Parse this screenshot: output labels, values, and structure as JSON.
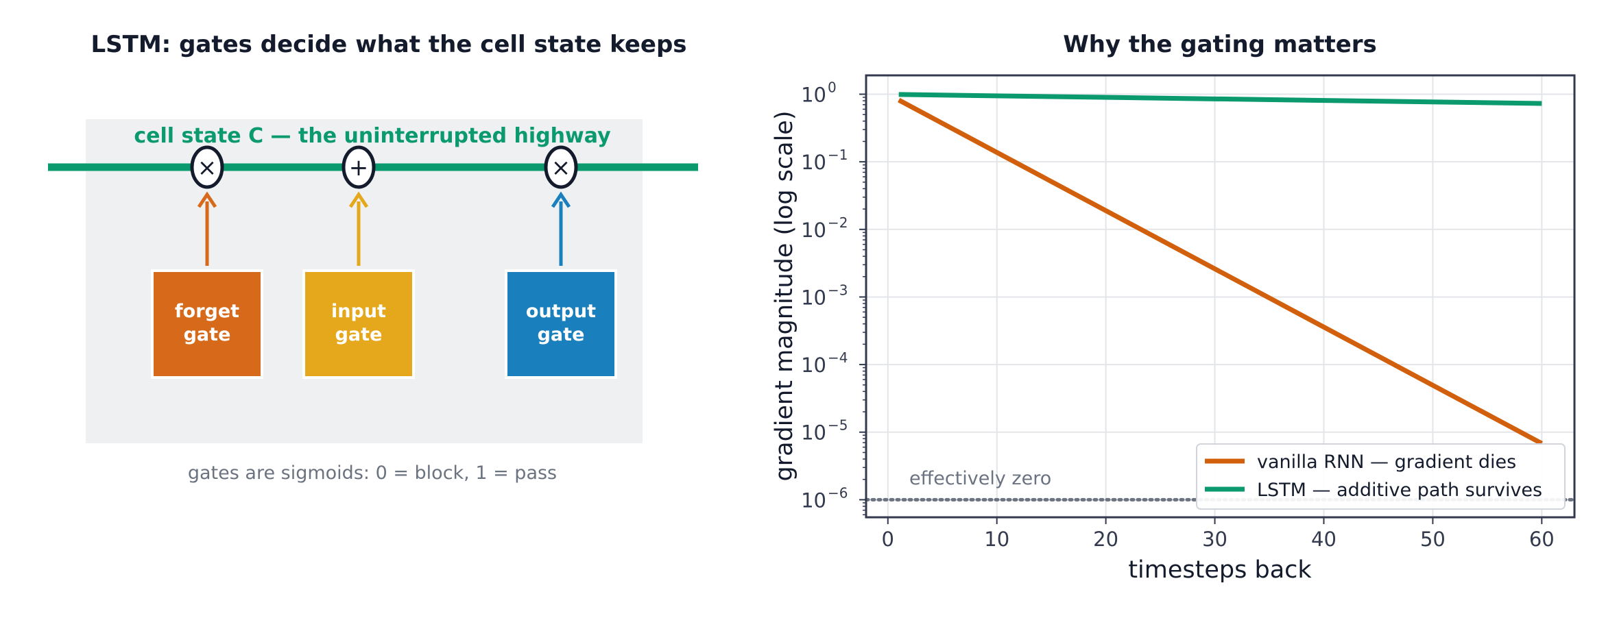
{
  "diagram": {
    "title": "LSTM: gates decide what the cell state keeps",
    "highway_label": "cell state  C  — the uninterrupted highway",
    "operators": {
      "forget": "×",
      "input": "+",
      "output": "×"
    },
    "gates": [
      {
        "id": "forget",
        "line1": "forget",
        "line2": "gate",
        "color": "#d66a1a"
      },
      {
        "id": "input",
        "line1": "input",
        "line2": "gate",
        "color": "#e5a71b"
      },
      {
        "id": "output",
        "line1": "output",
        "line2": "gate",
        "color": "#1a7fbd"
      }
    ],
    "caption": "gates are sigmoids: 0 = block, 1 = pass",
    "colors": {
      "highway": "#0a9a6e",
      "panel": "#eef0f2",
      "outline": "#141b2d"
    }
  },
  "chart_data": {
    "type": "line",
    "title": "Why the gating matters",
    "xlabel": "timesteps back",
    "ylabel": "gradient magnitude (log scale)",
    "yscale": "log",
    "xlim": [
      -2,
      63
    ],
    "ylim": [
      5.5e-07,
      1.9
    ],
    "x_ticks": [
      0,
      10,
      20,
      30,
      40,
      50,
      60
    ],
    "x_tick_labels": [
      "0",
      "10",
      "20",
      "30",
      "40",
      "50",
      "60"
    ],
    "y_ticks": [
      {
        "value": 1,
        "base": "10",
        "exp": "0"
      },
      {
        "value": 0.1,
        "base": "10",
        "exp": "−1"
      },
      {
        "value": 0.01,
        "base": "10",
        "exp": "−2"
      },
      {
        "value": 0.001,
        "base": "10",
        "exp": "−3"
      },
      {
        "value": 0.0001,
        "base": "10",
        "exp": "−4"
      },
      {
        "value": 1e-05,
        "base": "10",
        "exp": "−5"
      },
      {
        "value": 1e-06,
        "base": "10",
        "exp": "−6"
      }
    ],
    "grid": true,
    "legend_position": "lower-right",
    "series": [
      {
        "name": "vanilla RNN — gradient dies",
        "color": "#d15f0b",
        "x": [
          1,
          60
        ],
        "y": [
          0.82,
          6.8e-06
        ],
        "style": "solid"
      },
      {
        "name": "LSTM — additive path survives",
        "color": "#0a9a6e",
        "x": [
          1,
          60
        ],
        "y": [
          0.99,
          0.73
        ],
        "style": "solid"
      }
    ],
    "reference_line": {
      "y": 1e-06,
      "label": "effectively zero",
      "color": "#6b7280",
      "style": "dotted"
    }
  }
}
